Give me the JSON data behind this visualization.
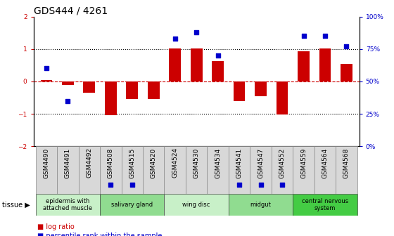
{
  "title": "GDS444 / 4261",
  "samples": [
    "GSM4490",
    "GSM4491",
    "GSM4492",
    "GSM4508",
    "GSM4515",
    "GSM4520",
    "GSM4524",
    "GSM4530",
    "GSM4534",
    "GSM4541",
    "GSM4547",
    "GSM4552",
    "GSM4559",
    "GSM4564",
    "GSM4568"
  ],
  "log_ratio": [
    0.05,
    -0.1,
    -0.35,
    -1.05,
    -0.55,
    -0.55,
    1.02,
    1.02,
    0.62,
    -0.6,
    -0.45,
    -1.02,
    0.93,
    1.02,
    0.55
  ],
  "percentile": [
    0.6,
    0.35,
    null,
    null,
    null,
    null,
    0.83,
    0.88,
    0.7,
    null,
    null,
    null,
    0.85,
    0.85,
    0.77
  ],
  "percentile_below": [
    null,
    null,
    null,
    0.1,
    0.1,
    null,
    null,
    null,
    null,
    0.15,
    0.18,
    0.12,
    null,
    null,
    null
  ],
  "tissue_groups": [
    {
      "label": "epidermis with\nattached muscle",
      "start": 0,
      "end": 3,
      "color": "#c8f0c8"
    },
    {
      "label": "salivary gland",
      "start": 3,
      "end": 6,
      "color": "#90dc90"
    },
    {
      "label": "wing disc",
      "start": 6,
      "end": 9,
      "color": "#c8f0c8"
    },
    {
      "label": "midgut",
      "start": 9,
      "end": 12,
      "color": "#90dc90"
    },
    {
      "label": "central nervous\nsystem",
      "start": 12,
      "end": 15,
      "color": "#44cc44"
    }
  ],
  "bar_color": "#cc0000",
  "dot_color": "#0000cc",
  "zero_line_color": "#cc0000",
  "dotted_line_color": "#000000",
  "ylim_left": [
    -2,
    2
  ],
  "ylim_right": [
    0,
    100
  ],
  "yticks_left": [
    -2,
    -1,
    0,
    1,
    2
  ],
  "yticks_right": [
    0,
    25,
    50,
    75,
    100
  ],
  "ylabel_left_color": "#cc0000",
  "ylabel_right_color": "#0000cc",
  "background_color": "#ffffff",
  "plot_bg_color": "#ffffff",
  "title_fontsize": 10,
  "tick_fontsize": 6.5,
  "tissue_fontsize": 6,
  "sample_box_color": "#d8d8d8"
}
